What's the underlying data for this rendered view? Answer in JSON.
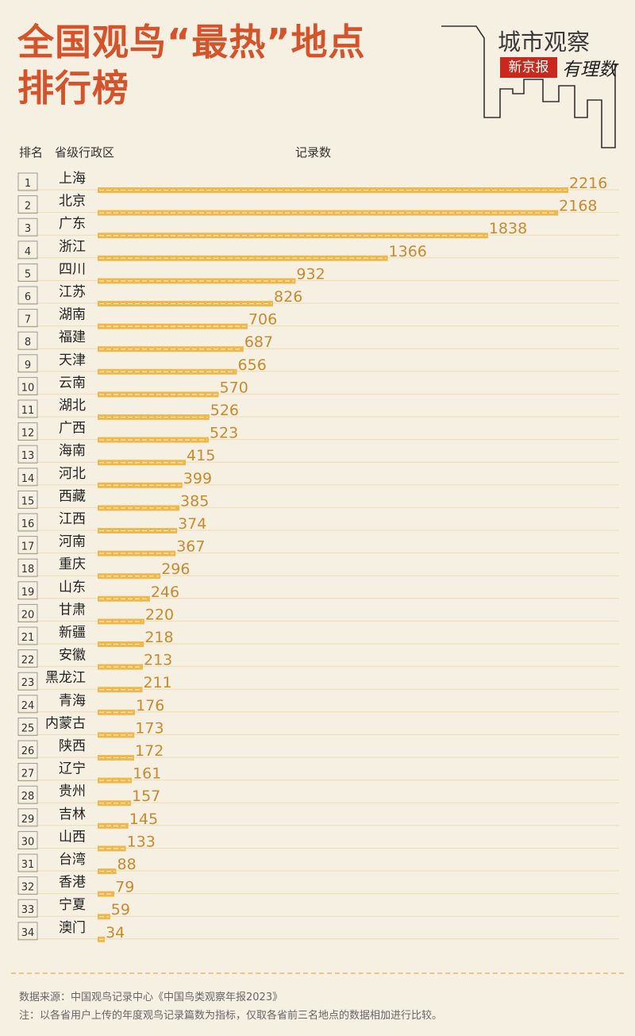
{
  "header": {
    "title_line1": "全国观鸟“最热”地点",
    "title_line2": "排行榜",
    "col_rank": "排名",
    "col_region": "省级行政区",
    "col_count": "记录数"
  },
  "logo": {
    "city_watch": "城市观察",
    "paper": "新京报",
    "tagline": "有理数"
  },
  "footer": {
    "source": "数据来源：中国观鸟记录中心《中国鸟类观察年报2023》",
    "note": "注：以各省用户上传的年度观鸟记录篇数为指标，仅取各省前三名地点的数据相加进行比较。"
  },
  "colors": {
    "bar": "#f0b84b",
    "value_text": "#c98a2e",
    "title": "#d4532a",
    "rule": "#eedcb0"
  },
  "chart_data": {
    "type": "bar",
    "orientation": "horizontal",
    "categories": [
      "上海",
      "北京",
      "广东",
      "浙江",
      "四川",
      "江苏",
      "湖南",
      "福建",
      "天津",
      "云南",
      "湖北",
      "广西",
      "海南",
      "河北",
      "西藏",
      "江西",
      "河南",
      "重庆",
      "山东",
      "甘肃",
      "新疆",
      "安徽",
      "黑龙江",
      "青海",
      "内蒙古",
      "陕西",
      "辽宁",
      "贵州",
      "吉林",
      "山西",
      "台湾",
      "香港",
      "宁夏",
      "澳门"
    ],
    "ranks": [
      "1",
      "2",
      "3",
      "4",
      "5",
      "6",
      "7",
      "8",
      "9",
      "10",
      "11",
      "12",
      "13",
      "14",
      "15",
      "16",
      "17",
      "18",
      "19",
      "20",
      "21",
      "22",
      "23",
      "24",
      "25",
      "26",
      "27",
      "28",
      "29",
      "30",
      "31",
      "32",
      "33",
      "34"
    ],
    "values": [
      2216,
      2168,
      1838,
      1366,
      932,
      826,
      706,
      687,
      656,
      570,
      526,
      523,
      415,
      399,
      385,
      374,
      367,
      296,
      246,
      220,
      218,
      213,
      211,
      176,
      173,
      172,
      161,
      157,
      145,
      133,
      88,
      79,
      59,
      34
    ],
    "xlim": [
      0,
      2216
    ],
    "grid": false,
    "legend": "none"
  }
}
